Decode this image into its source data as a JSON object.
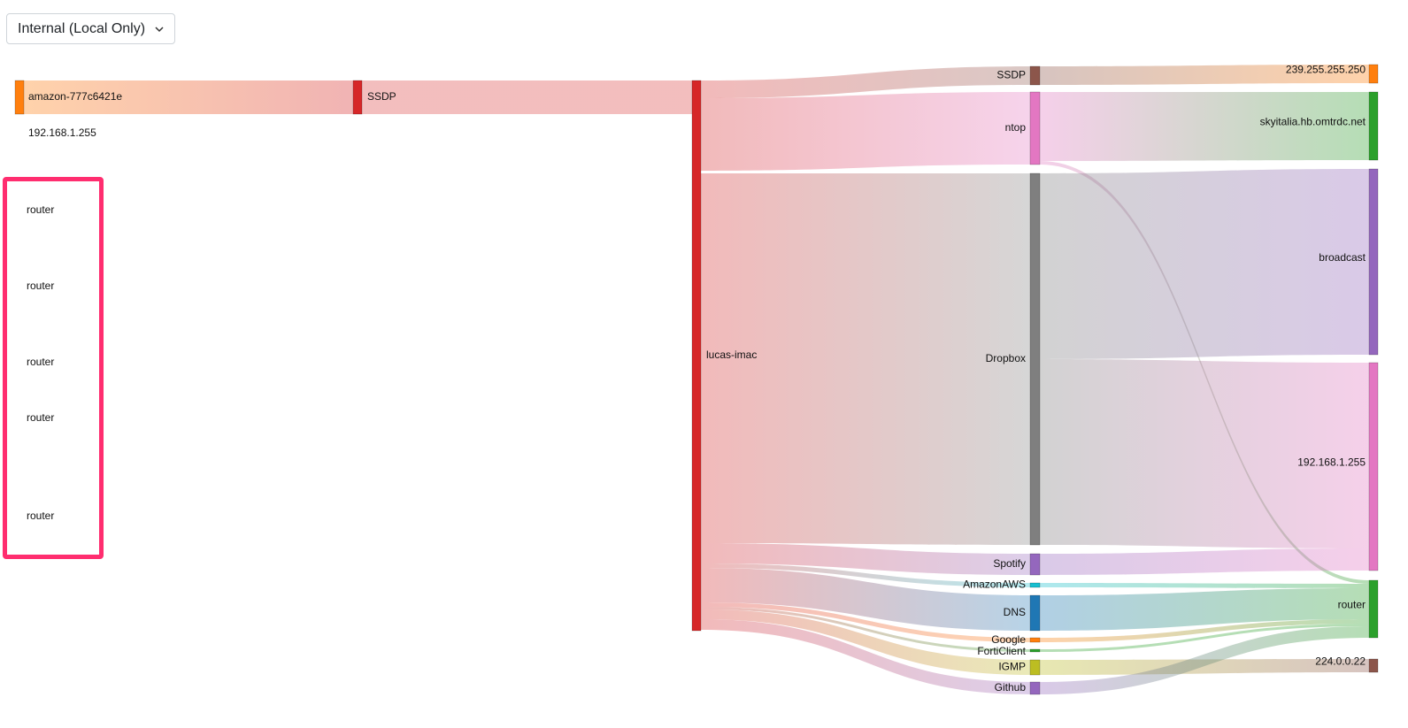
{
  "filter": {
    "selected": "Internal (Local Only)",
    "icon": "chevron-down-icon"
  },
  "sankey": {
    "source_nodes": [
      {
        "label": "amazon-777c6421e",
        "color": "#ff7f0e"
      },
      {
        "label": "192.168.1.255",
        "color": "#ff7f0e"
      }
    ],
    "app_left": {
      "label": "SSDP",
      "color": "#d62728"
    },
    "hub": {
      "label": "lucas-imac",
      "color": "#d62728"
    },
    "apps": [
      {
        "label": "SSDP",
        "color": "#8c564b"
      },
      {
        "label": "ntop",
        "color": "#e377c2"
      },
      {
        "label": "Dropbox",
        "color": "#7f7f7f"
      },
      {
        "label": "Spotify",
        "color": "#9467bd"
      },
      {
        "label": "AmazonAWS",
        "color": "#17becf"
      },
      {
        "label": "DNS",
        "color": "#1f77b4"
      },
      {
        "label": "Google",
        "color": "#ff7f0e"
      },
      {
        "label": "FortiClient",
        "color": "#2ca02c"
      },
      {
        "label": "IGMP",
        "color": "#bcbd22"
      },
      {
        "label": "Github",
        "color": "#9467bd"
      }
    ],
    "destinations": [
      {
        "label": "239.255.255.250",
        "color": "#ff7f0e"
      },
      {
        "label": "skyitalia.hb.omtrdc.net",
        "color": "#2ca02c"
      },
      {
        "label": "broadcast",
        "color": "#9467bd"
      },
      {
        "label": "192.168.1.255",
        "color": "#e377c2"
      },
      {
        "label": "router",
        "color": "#2ca02c"
      },
      {
        "label": "224.0.0.22",
        "color": "#8c564b"
      }
    ]
  },
  "highlight": {
    "border_color": "#ff2d6f",
    "items": [
      "router",
      "router",
      "router",
      "router",
      "router"
    ]
  }
}
